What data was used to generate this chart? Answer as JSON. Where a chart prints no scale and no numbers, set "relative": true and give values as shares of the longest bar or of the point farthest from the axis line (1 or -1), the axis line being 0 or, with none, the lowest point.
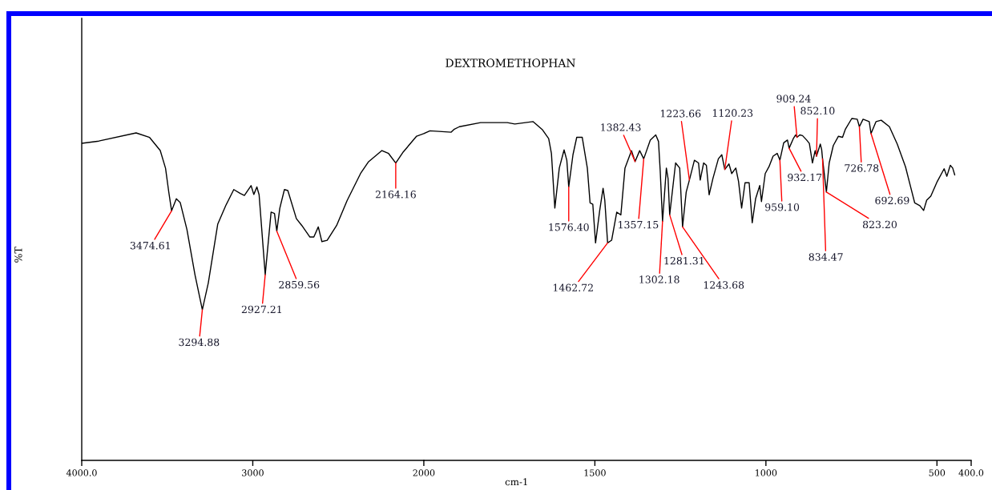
{
  "chart_data": [
    {
      "type": "line",
      "ylabel": "%T",
      "relative": true,
      "xlim": [
        4000,
        2000
      ],
      "xticks": [
        {
          "value": 4000,
          "label": "4000.0"
        },
        3000,
        2000
      ],
      "x": [
        4000,
        3900,
        3682,
        3603,
        3541,
        3510,
        3491,
        3474.61,
        3447,
        3424,
        3385,
        3338,
        3294.88,
        3260,
        3205,
        3158,
        3111,
        3073,
        3049,
        3010,
        2994,
        2976,
        2963,
        2927.21,
        2893,
        2873,
        2859.56,
        2842,
        2815,
        2795,
        2745,
        2713,
        2666,
        2643,
        2617,
        2596,
        2565,
        2510,
        2448,
        2370,
        2323,
        2245,
        2206,
        2164.16,
        2120,
        2042,
        2000
      ],
      "series": [
        {
          "color": "#000000",
          "values": [
            0.968,
            0.975,
            1.0,
            0.986,
            0.946,
            0.892,
            0.819,
            0.762,
            0.799,
            0.787,
            0.705,
            0.567,
            0.46,
            0.542,
            0.721,
            0.778,
            0.827,
            0.815,
            0.809,
            0.839,
            0.812,
            0.835,
            0.811,
            0.567,
            0.758,
            0.754,
            0.7,
            0.77,
            0.827,
            0.824,
            0.738,
            0.717,
            0.682,
            0.682,
            0.713,
            0.668,
            0.672,
            0.717,
            0.794,
            0.876,
            0.912,
            0.946,
            0.937,
            0.908,
            0.942,
            0.99,
            0.998
          ]
        }
      ],
      "annotations": [
        {
          "text": "3474.61",
          "x": 3474.61,
          "y": 0.762
        },
        {
          "text": "3294.88",
          "x": 3294.88,
          "y": 0.46
        },
        {
          "text": "2927.21",
          "x": 2927.21,
          "y": 0.567
        },
        {
          "text": "2859.56",
          "x": 2859.56,
          "y": 0.7
        },
        {
          "text": "2164.16",
          "x": 2164.16,
          "y": 0.908
        }
      ]
    },
    {
      "type": "line",
      "title": "DEXTROMETHOPHAN",
      "xlabel": "cm-1",
      "relative": true,
      "xlim": [
        2000,
        400
      ],
      "xticks": [
        1500,
        1000,
        500,
        {
          "value": 400,
          "label": "400.0"
        }
      ],
      "x": [
        2000,
        1982,
        1920,
        1912,
        1896,
        1834,
        1756,
        1734,
        1681,
        1654,
        1635,
        1627,
        1617,
        1604,
        1590,
        1582,
        1576.4,
        1564,
        1553,
        1537,
        1522,
        1514,
        1506,
        1498,
        1486,
        1476,
        1471,
        1462.72,
        1451,
        1436,
        1424,
        1412,
        1393,
        1382.43,
        1369,
        1357.15,
        1338,
        1322,
        1314,
        1309,
        1302.18,
        1291,
        1286,
        1281.31,
        1264,
        1252,
        1243.68,
        1233,
        1223.66,
        1209,
        1197,
        1192,
        1182,
        1174,
        1166,
        1155,
        1139,
        1129,
        1120.23,
        1108,
        1100,
        1088,
        1080,
        1071,
        1061,
        1049,
        1040,
        1030,
        1018,
        1013,
        1002,
        991,
        979,
        967,
        959.1,
        948,
        937,
        932.17,
        920,
        913,
        909.24,
        901,
        893,
        881,
        873,
        864,
        856,
        852.1,
        841,
        837,
        834.47,
        823.2,
        815,
        803,
        788,
        776,
        768,
        749,
        733,
        726.78,
        716,
        698,
        692.69,
        678,
        663,
        639,
        616,
        592,
        577,
        565,
        550,
        539,
        530,
        518,
        499,
        479,
        471,
        461,
        454,
        448
      ],
      "series": [
        {
          "color": "#000000",
          "values": [
            0.956,
            0.964,
            0.96,
            0.968,
            0.976,
            0.988,
            0.988,
            0.984,
            0.991,
            0.968,
            0.941,
            0.898,
            0.738,
            0.855,
            0.908,
            0.878,
            0.8,
            0.894,
            0.945,
            0.945,
            0.855,
            0.753,
            0.749,
            0.636,
            0.73,
            0.796,
            0.761,
            0.636,
            0.644,
            0.726,
            0.718,
            0.855,
            0.906,
            0.874,
            0.906,
            0.882,
            0.937,
            0.952,
            0.933,
            0.847,
            0.699,
            0.855,
            0.824,
            0.718,
            0.87,
            0.855,
            0.683,
            0.785,
            0.82,
            0.878,
            0.87,
            0.82,
            0.87,
            0.863,
            0.777,
            0.824,
            0.882,
            0.894,
            0.851,
            0.867,
            0.839,
            0.855,
            0.816,
            0.738,
            0.812,
            0.812,
            0.695,
            0.766,
            0.804,
            0.757,
            0.839,
            0.859,
            0.89,
            0.898,
            0.878,
            0.929,
            0.937,
            0.913,
            0.941,
            0.952,
            0.945,
            0.952,
            0.95,
            0.937,
            0.927,
            0.87,
            0.906,
            0.89,
            0.925,
            0.909,
            0.882,
            0.785,
            0.87,
            0.921,
            0.948,
            0.945,
            0.968,
            1.0,
            0.998,
            0.976,
            0.998,
            0.991,
            0.956,
            0.991,
            0.995,
            0.976,
            0.925,
            0.859,
            0.8,
            0.753,
            0.745,
            0.731,
            0.761,
            0.773,
            0.816,
            0.853,
            0.831,
            0.863,
            0.855,
            0.835
          ]
        }
      ],
      "annotations": [
        {
          "text": "1576.40",
          "x": 1576.4,
          "y": 0.8
        },
        {
          "text": "1462.72",
          "x": 1462.72,
          "y": 0.636
        },
        {
          "text": "1382.43",
          "x": 1382.43,
          "y": 0.874
        },
        {
          "text": "1357.15",
          "x": 1357.15,
          "y": 0.882
        },
        {
          "text": "1302.18",
          "x": 1302.18,
          "y": 0.699
        },
        {
          "text": "1281.31",
          "x": 1281.31,
          "y": 0.718
        },
        {
          "text": "1243.68",
          "x": 1243.68,
          "y": 0.683
        },
        {
          "text": "1223.66",
          "x": 1223.66,
          "y": 0.82
        },
        {
          "text": "1120.23",
          "x": 1120.23,
          "y": 0.851
        },
        {
          "text": "959.10",
          "x": 959.1,
          "y": 0.878
        },
        {
          "text": "932.17",
          "x": 932.17,
          "y": 0.913
        },
        {
          "text": "909.24",
          "x": 909.24,
          "y": 0.945
        },
        {
          "text": "852.10",
          "x": 852.1,
          "y": 0.89
        },
        {
          "text": "834.47",
          "x": 834.47,
          "y": 0.882
        },
        {
          "text": "823.20",
          "x": 823.2,
          "y": 0.785
        },
        {
          "text": "726.78",
          "x": 726.78,
          "y": 0.976
        },
        {
          "text": "692.69",
          "x": 692.69,
          "y": 0.956
        }
      ]
    }
  ]
}
